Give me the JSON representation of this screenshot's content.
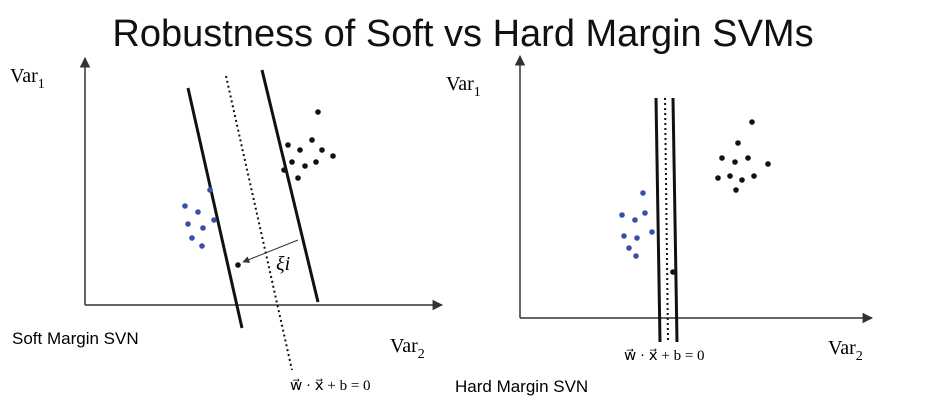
{
  "title": "Robustness of Soft vs Hard Margin SVMs",
  "soft_panel": {
    "y_axis": {
      "base": "Var",
      "sub": "1"
    },
    "x_axis": {
      "base": "Var",
      "sub": "2"
    },
    "slack_label": "ξi",
    "equation": "w⃗ · x⃗ + b = 0",
    "caption": "Soft Margin SVN"
  },
  "hard_panel": {
    "y_axis": {
      "base": "Var",
      "sub": "1"
    },
    "x_axis": {
      "base": "Var",
      "sub": "2"
    },
    "equation": "w⃗ · x⃗ + b = 0",
    "caption": "Hard Margin SVN"
  }
}
